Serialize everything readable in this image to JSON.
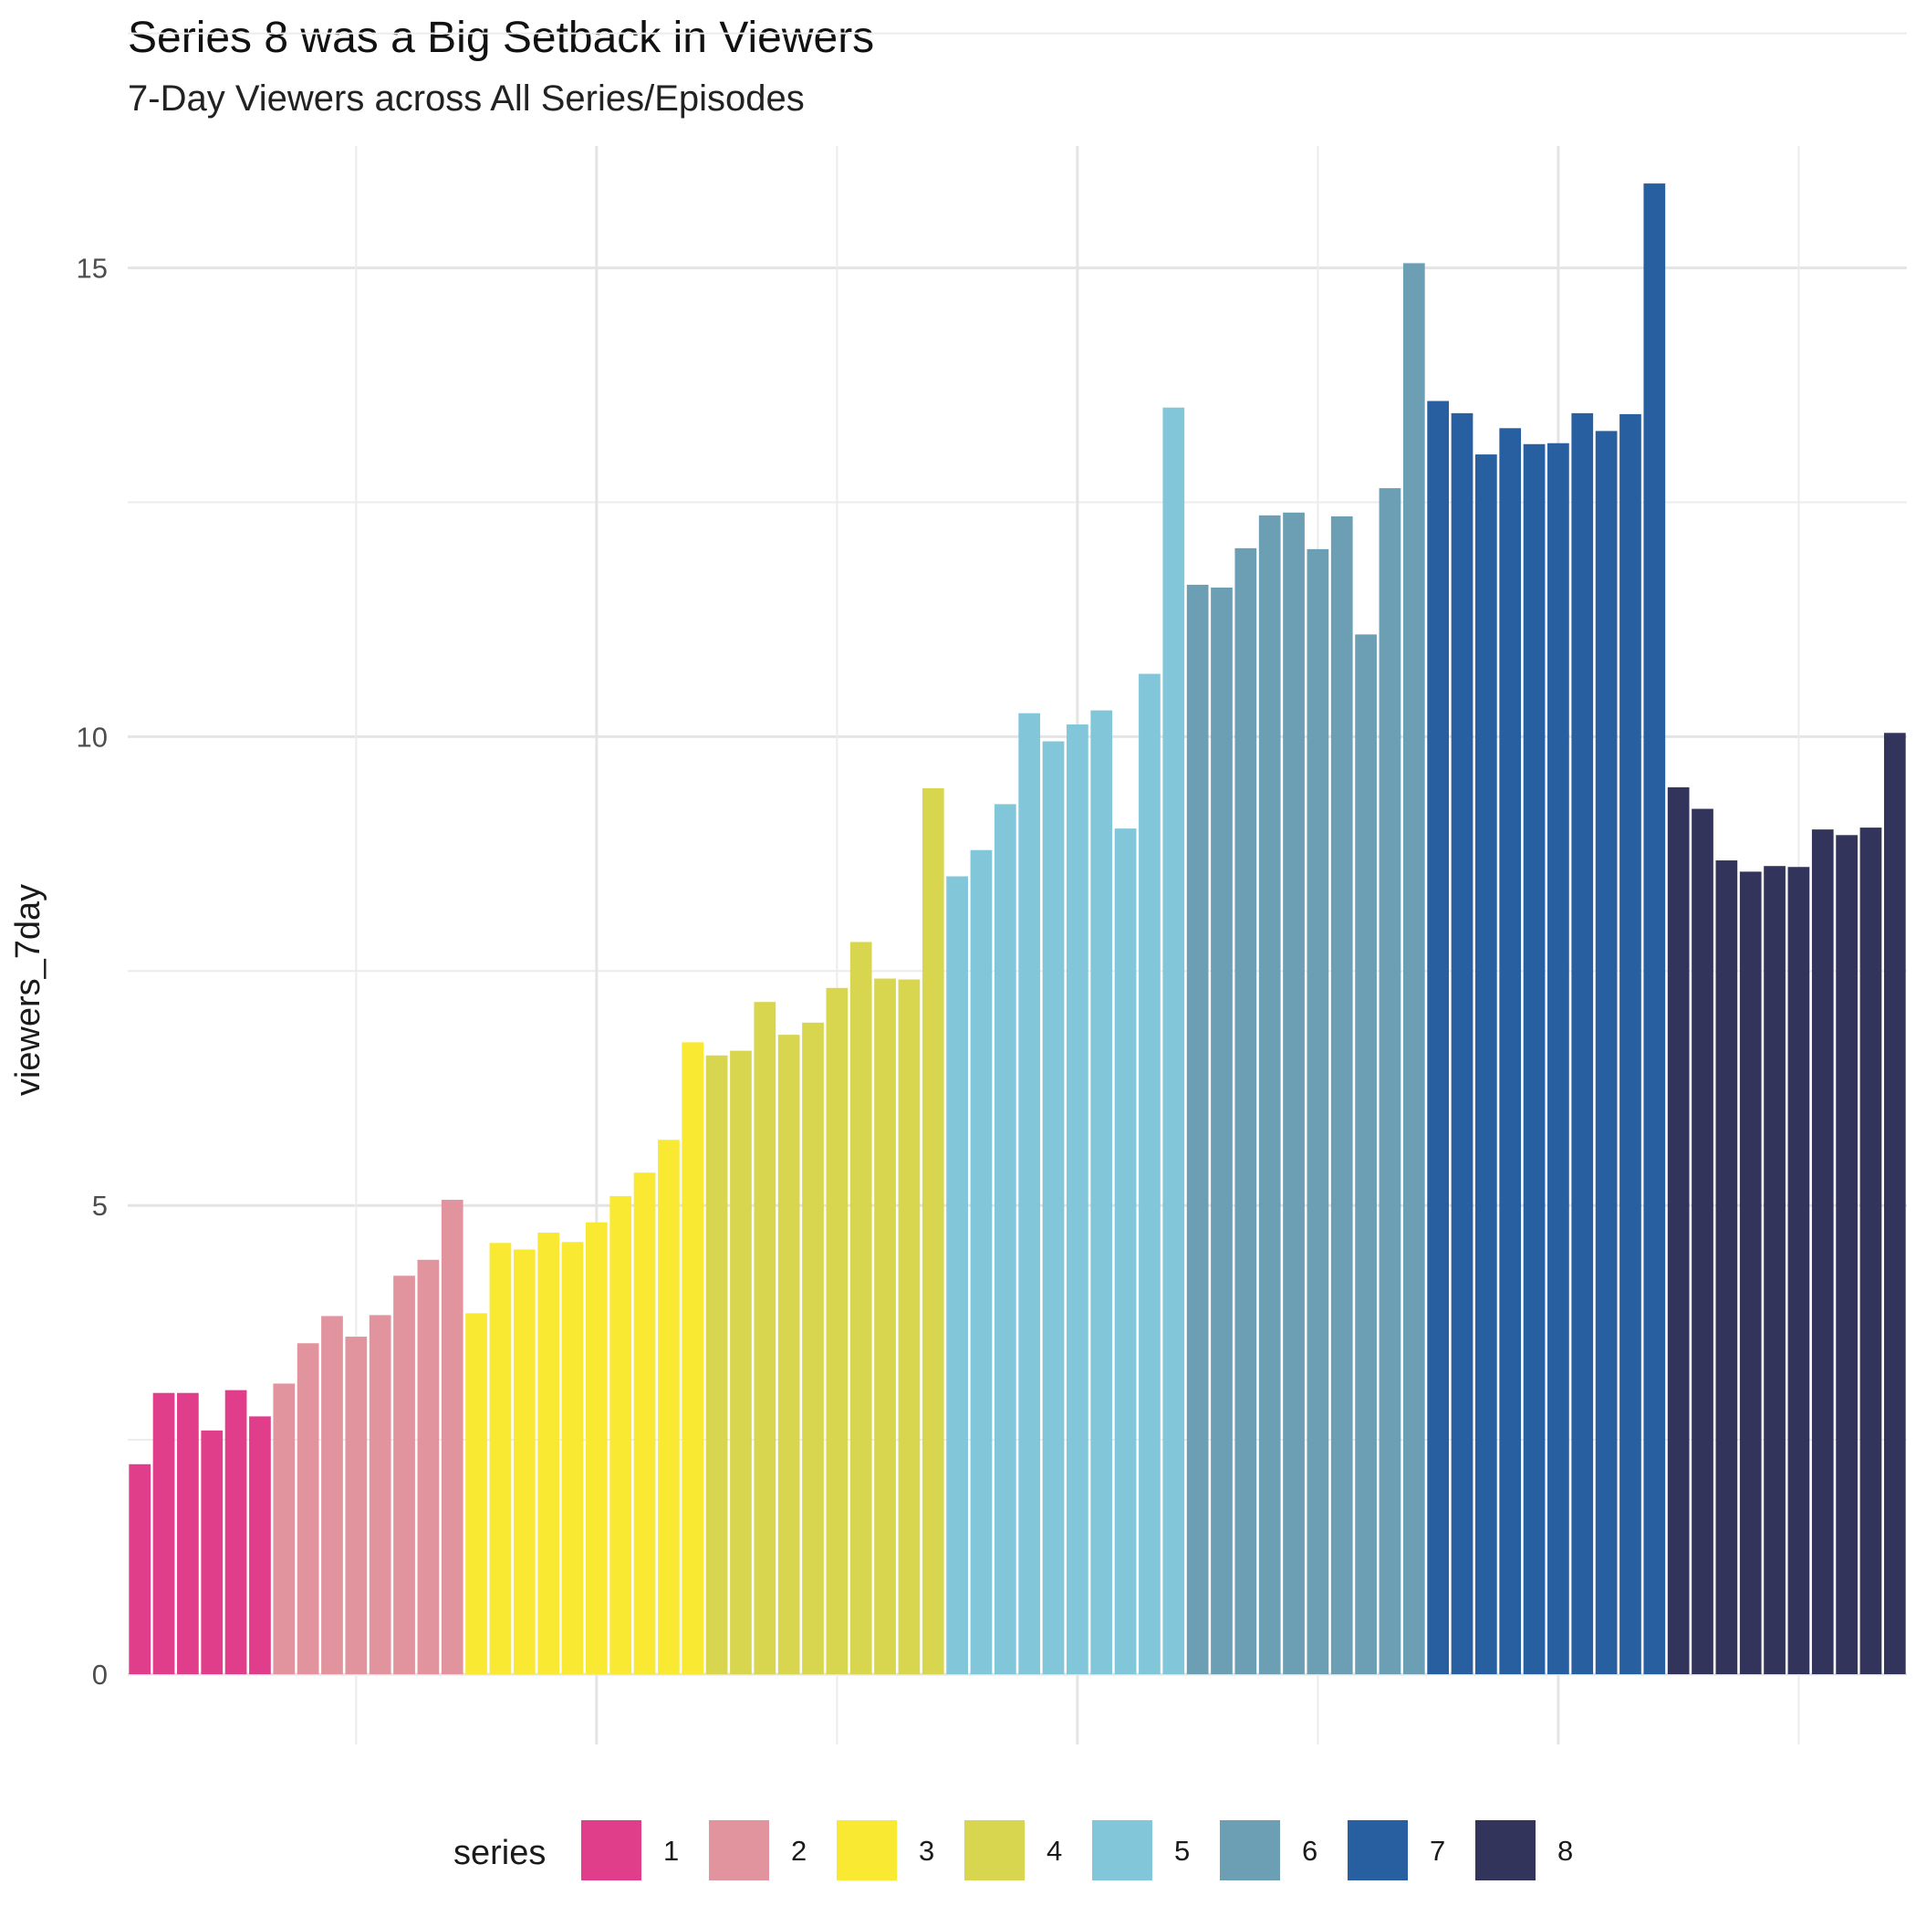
{
  "chart_data": {
    "type": "bar",
    "title": "Series 8 was a Big Setback in Viewers",
    "subtitle": "7-Day Viewers across All Series/Episodes",
    "xlabel": "",
    "ylabel": "viewers_7day",
    "ylim": [
      0,
      16.3
    ],
    "y_ticks": [
      0,
      5,
      10,
      15
    ],
    "grid": true,
    "legend_position": "bottom",
    "legend_title": "series",
    "series": [
      {
        "name": "1",
        "color": "#E03E8B",
        "values": [
          2.24,
          3.0,
          3.0,
          2.6,
          3.03,
          2.75
        ]
      },
      {
        "name": "2",
        "color": "#E1939E",
        "values": [
          3.1,
          3.53,
          3.82,
          3.6,
          3.83,
          4.25,
          4.42,
          5.06
        ]
      },
      {
        "name": "3",
        "color": "#FAE932",
        "values": [
          3.85,
          4.6,
          4.53,
          4.71,
          4.61,
          4.82,
          5.1,
          5.35,
          5.7,
          6.74
        ]
      },
      {
        "name": "4",
        "color": "#D8D64E",
        "values": [
          6.6,
          6.65,
          7.17,
          6.82,
          6.95,
          7.32,
          7.81,
          7.42,
          7.41,
          9.45
        ]
      },
      {
        "name": "5",
        "color": "#82C6DA",
        "values": [
          8.51,
          8.79,
          9.28,
          10.25,
          9.95,
          10.13,
          10.28,
          9.02,
          10.67,
          13.51
        ]
      },
      {
        "name": "6",
        "color": "#6C9FB4",
        "values": [
          11.62,
          11.59,
          12.01,
          12.36,
          12.39,
          12.0,
          12.35,
          11.09,
          12.65,
          15.05
        ]
      },
      {
        "name": "7",
        "color": "#275FA0",
        "values": [
          13.58,
          13.45,
          13.01,
          13.29,
          13.12,
          13.13,
          13.45,
          13.26,
          13.44,
          15.9
        ]
      },
      {
        "name": "8",
        "color": "#33345B",
        "values": [
          9.46,
          9.23,
          8.68,
          8.56,
          8.62,
          8.61,
          9.01,
          8.95,
          9.03,
          10.04
        ]
      }
    ]
  }
}
